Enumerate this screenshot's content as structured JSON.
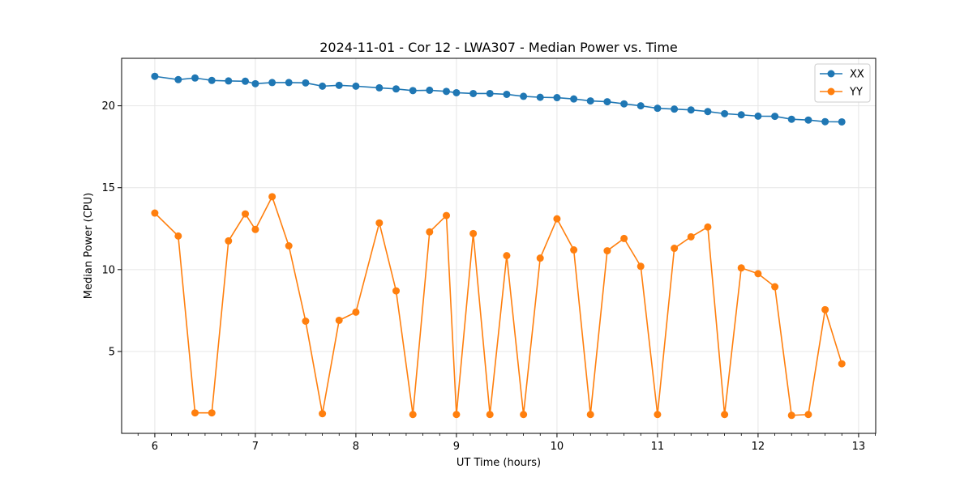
{
  "chart_data": {
    "type": "line",
    "title": "2024-11-01 - Cor 12 - LWA307 - Median Power vs. Time",
    "xlabel": "UT Time (hours)",
    "ylabel": "Median Power (CPU)",
    "xlim": [
      5.67,
      13.17
    ],
    "ylim": [
      0.0,
      22.9
    ],
    "xticks": [
      6,
      7,
      8,
      9,
      10,
      11,
      12,
      13
    ],
    "yticks": [
      5,
      10,
      15,
      20
    ],
    "grid": true,
    "legend_position": "top-right",
    "x": [
      6.0,
      6.233,
      6.4,
      6.567,
      6.733,
      6.9,
      7.0,
      7.167,
      7.333,
      7.5,
      7.667,
      7.833,
      8.0,
      8.233,
      8.4,
      8.567,
      8.733,
      8.9,
      9.0,
      9.167,
      9.333,
      9.5,
      9.667,
      9.833,
      10.0,
      10.167,
      10.333,
      10.5,
      10.667,
      10.833,
      11.0,
      11.167,
      11.333,
      11.5,
      11.667,
      11.833,
      12.0,
      12.167,
      12.333,
      12.5,
      12.667,
      12.833
    ],
    "series": [
      {
        "name": "XX",
        "color": "#1f77b4",
        "values": [
          21.8,
          21.6,
          21.7,
          21.55,
          21.52,
          21.5,
          21.35,
          21.42,
          21.42,
          21.4,
          21.2,
          21.25,
          21.2,
          21.1,
          21.03,
          20.93,
          20.95,
          20.88,
          20.8,
          20.75,
          20.75,
          20.7,
          20.58,
          20.52,
          20.5,
          20.42,
          20.3,
          20.25,
          20.12,
          20.0,
          19.85,
          19.8,
          19.75,
          19.65,
          19.52,
          19.45,
          19.37,
          19.36,
          19.18,
          19.13,
          19.03,
          19.02
        ]
      },
      {
        "name": "YY",
        "color": "#ff7f0e",
        "values": [
          13.45,
          12.05,
          1.25,
          1.25,
          11.75,
          13.4,
          12.45,
          14.45,
          11.45,
          6.85,
          1.2,
          6.9,
          7.4,
          12.85,
          8.7,
          1.15,
          12.3,
          13.3,
          1.15,
          12.2,
          1.15,
          10.85,
          1.15,
          10.7,
          13.1,
          11.2,
          1.15,
          11.15,
          11.9,
          10.2,
          1.15,
          11.3,
          12.0,
          12.6,
          1.15,
          10.1,
          9.75,
          8.95,
          1.1,
          1.15,
          7.55,
          4.25
        ]
      }
    ]
  }
}
